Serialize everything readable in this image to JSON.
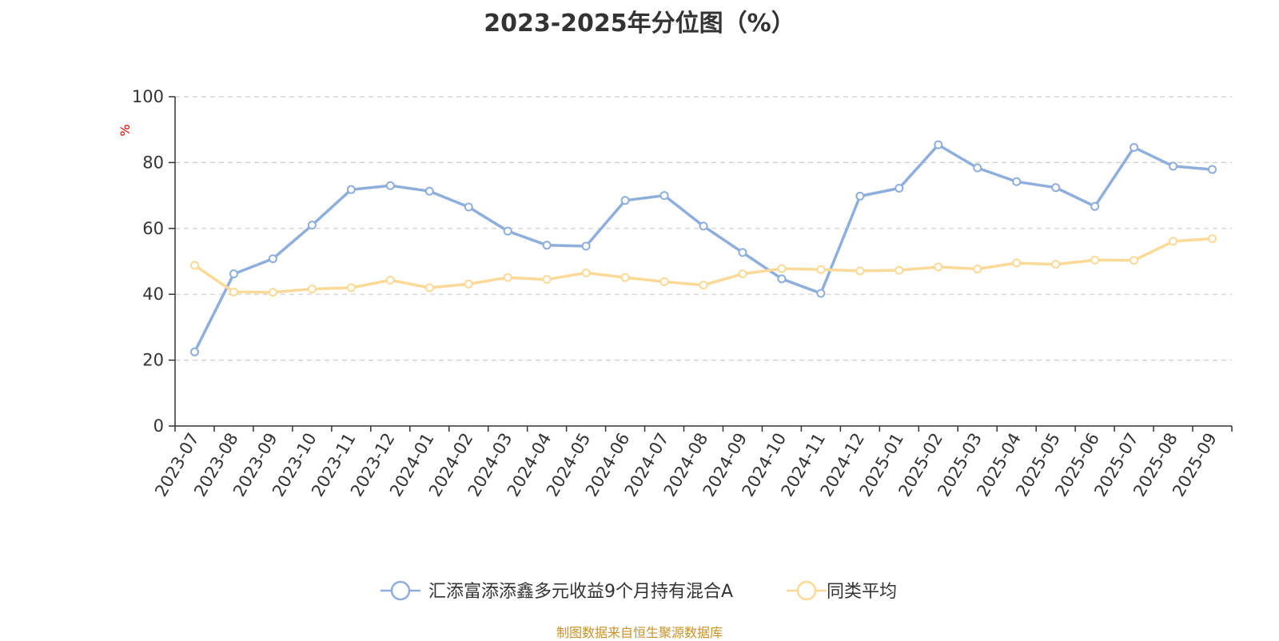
{
  "chart_data": {
    "type": "line",
    "title": "2023-2025年分位图（%）",
    "ylabel": "%",
    "ylim": [
      0,
      100
    ],
    "yticks": [
      0,
      20,
      40,
      60,
      80,
      100
    ],
    "grid": true,
    "legend_position": "bottom",
    "categories": [
      "2023-07",
      "2023-08",
      "2023-09",
      "2023-10",
      "2023-11",
      "2023-12",
      "2024-01",
      "2024-02",
      "2024-03",
      "2024-04",
      "2024-05",
      "2024-06",
      "2024-07",
      "2024-08",
      "2024-09",
      "2024-10",
      "2024-11",
      "2024-12",
      "2025-01",
      "2025-02",
      "2025-03",
      "2025-04",
      "2025-05",
      "2025-06",
      "2025-07",
      "2025-08",
      "2025-09"
    ],
    "series": [
      {
        "name": "汇添富添添鑫多元收益9个月持有混合A",
        "color": "#8eaedb",
        "values": [
          22.5,
          46.2,
          50.8,
          61.0,
          71.8,
          73.0,
          71.3,
          66.5,
          59.2,
          54.9,
          54.6,
          68.5,
          70.0,
          60.7,
          52.7,
          44.7,
          40.3,
          69.8,
          72.2,
          85.4,
          78.4,
          74.2,
          72.4,
          66.7,
          84.6,
          78.9,
          77.9
        ]
      },
      {
        "name": "同类平均",
        "color": "#fbd997",
        "values": [
          48.8,
          40.7,
          40.6,
          41.6,
          42.0,
          44.3,
          42.0,
          43.1,
          45.1,
          44.5,
          46.5,
          45.1,
          43.8,
          42.8,
          46.2,
          47.8,
          47.5,
          47.1,
          47.3,
          48.3,
          47.7,
          49.5,
          49.1,
          50.4,
          50.3,
          56.1,
          56.9
        ]
      }
    ]
  },
  "footer": {
    "source": "制图数据来自恒生聚源数据库"
  }
}
